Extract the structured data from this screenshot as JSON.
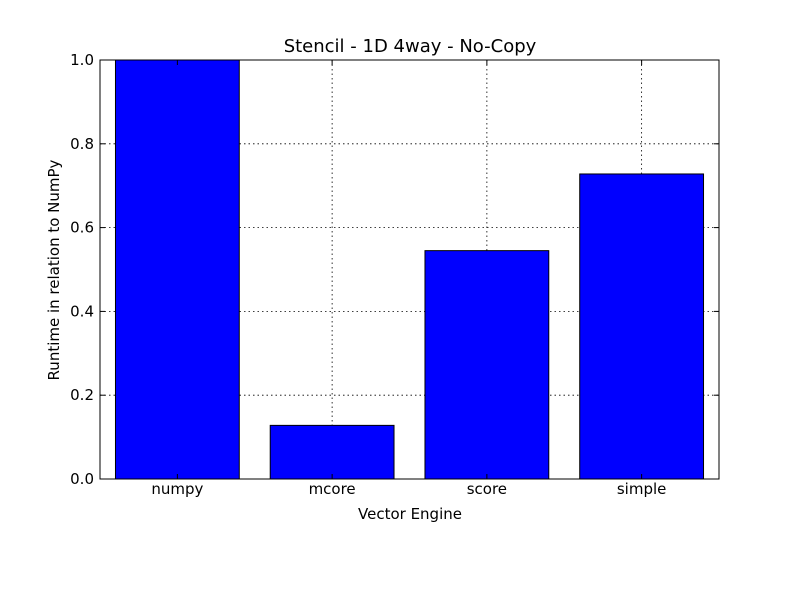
{
  "chart_data": {
    "type": "bar",
    "title": "Stencil - 1D 4way - No-Copy",
    "xlabel": "Vector Engine",
    "ylabel": "Runtime in relation to NumPy",
    "categories": [
      "numpy",
      "mcore",
      "score",
      "simple"
    ],
    "values": [
      1.0,
      0.128,
      0.545,
      0.728
    ],
    "ylim": [
      0,
      1.0
    ],
    "yticks": [
      "0.0",
      "0.2",
      "0.4",
      "0.6",
      "0.8",
      "1.0"
    ],
    "grid": true,
    "bar_color": "#0000ff"
  }
}
